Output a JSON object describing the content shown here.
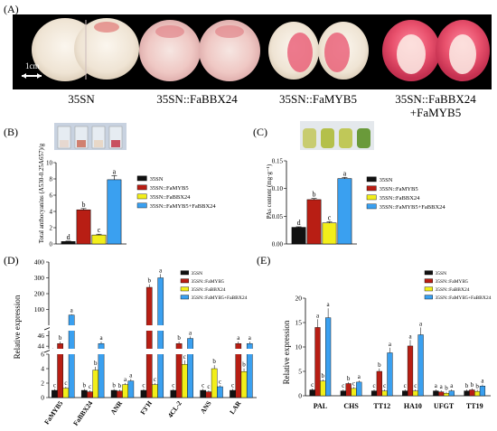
{
  "panels": {
    "A": {
      "label": "(A)",
      "scale_bar": "1cm",
      "samples": [
        "35SN",
        "35SN::FaBBX24",
        "35SN::FaMYB5",
        "35SN::FaBBX24",
        "+FaMYB5"
      ]
    }
  },
  "colors": {
    "35SN": "#111111",
    "35SN::FaMYB5": "#b81e14",
    "35SN::FaBBX24": "#f2ee1a",
    "35SN::FaMYB5+FaBBX24": "#3aa0f0",
    "grid_line": "#000000"
  },
  "chart_data": [
    {
      "id": "B",
      "panel_label": "(B)",
      "type": "bar",
      "ylabel": "Total anthocyanins (A530-0.25A657)/g",
      "ylim": [
        0,
        10
      ],
      "yticks": [
        "0",
        "2",
        "4",
        "6",
        "8",
        "10"
      ],
      "legend": [
        "35SN",
        "35SN::FaMYB5",
        "35SN::FaBBX24",
        "35SN::FaMYB5+FaBBX24"
      ],
      "values": [
        0.3,
        4.2,
        1.1,
        7.9
      ],
      "errors": [
        0.05,
        0.15,
        0.1,
        0.5
      ],
      "letters": [
        "d",
        "b",
        "c",
        "a"
      ]
    },
    {
      "id": "C",
      "panel_label": "(C)",
      "type": "bar",
      "ylabel": "PAs content (mg·g⁻¹)",
      "ylim": [
        0,
        0.15
      ],
      "yticks": [
        "0.00",
        "0.05",
        "0.10",
        "0.15"
      ],
      "legend": [
        "35SN",
        "35SN::FaMYB5",
        "35SN::FaBBX24",
        "35SN::FaMYB5+FaBBX24"
      ],
      "values": [
        0.03,
        0.08,
        0.038,
        0.118
      ],
      "errors": [
        0.001,
        0.002,
        0.002,
        0.002
      ],
      "letters": [
        "d",
        "b",
        "c",
        "a"
      ]
    },
    {
      "id": "D",
      "panel_label": "(D)",
      "type": "bar",
      "ylabel": "Relative expression",
      "broken_axis": true,
      "yticks": [
        "0",
        "2",
        "4",
        "6",
        "44",
        "46",
        "100",
        "200",
        "300",
        "400"
      ],
      "categories": [
        "FaMYB5",
        "FaBBX24",
        "ANR",
        "F3'H",
        "4CL-2",
        "ANS",
        "LAR"
      ],
      "legend": [
        "35SN",
        "35SN::FaMYB5",
        "35SN::FaBBX24",
        "35SN::FaMYB5+FaBBX24"
      ],
      "series": [
        {
          "name": "35SN",
          "values": [
            1,
            1,
            1,
            1,
            1,
            1,
            1
          ],
          "letters": [
            "c",
            "b",
            "b",
            "c",
            "c",
            "c",
            "c"
          ]
        },
        {
          "name": "35SN::FaMYB5",
          "values": [
            44.5,
            0.8,
            0.9,
            240,
            44.5,
            0.8,
            44.5
          ],
          "letters": [
            "b",
            "c",
            "b",
            "b",
            "b",
            "c",
            "a"
          ]
        },
        {
          "name": "35SN::FaBBX24",
          "values": [
            1.3,
            3.8,
            1.8,
            1.8,
            4.6,
            4.0,
            3.6
          ],
          "letters": [
            "c",
            "b",
            "a",
            "c",
            "c",
            "b",
            "b"
          ]
        },
        {
          "name": "35SN::FaMYB5+FaBBX24",
          "values": [
            65,
            44.5,
            2.3,
            300,
            45.5,
            1.5,
            44.5
          ],
          "letters": [
            "a",
            "a",
            "a",
            "a",
            "a",
            "c",
            "a"
          ]
        }
      ]
    },
    {
      "id": "E",
      "panel_label": "(E)",
      "type": "bar",
      "ylabel": "Relative expression",
      "ylim": [
        0,
        20
      ],
      "yticks": [
        "0",
        "5",
        "10",
        "15",
        "20"
      ],
      "categories": [
        "PAL",
        "CHS",
        "TT12",
        "HA10",
        "UFGT",
        "TT19"
      ],
      "legend": [
        "35SN",
        "35SN::FaMYB5",
        "35SN::FaBBX24",
        "35SN::FaMYB5+FaBBX24"
      ],
      "series": [
        {
          "name": "35SN",
          "values": [
            1.2,
            1.0,
            1.0,
            1.0,
            1.0,
            1.0
          ],
          "letters": [
            "c",
            "c",
            "c",
            "c",
            "a",
            "b"
          ]
        },
        {
          "name": "35SN::FaMYB5",
          "values": [
            14.0,
            2.5,
            5.0,
            10.2,
            0.8,
            1.2
          ],
          "letters": [
            "a",
            "b",
            "b",
            "a",
            "a",
            "b"
          ]
        },
        {
          "name": "35SN::FaBBX24",
          "values": [
            3.0,
            1.5,
            1.0,
            1.0,
            0.5,
            0.9
          ],
          "letters": [
            "b",
            "c",
            "c",
            "c",
            "b",
            "b"
          ]
        },
        {
          "name": "35SN::FaMYB5+FaBBX24",
          "values": [
            16.0,
            2.8,
            8.8,
            12.5,
            1.0,
            2.0
          ],
          "letters": [
            "a",
            "a",
            "a",
            "a",
            "a",
            "a"
          ]
        }
      ]
    }
  ]
}
